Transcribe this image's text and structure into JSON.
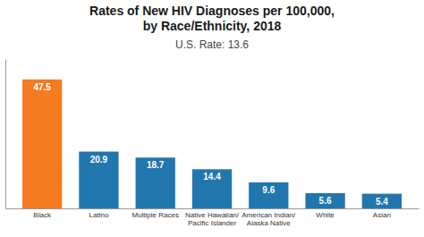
{
  "chart_data": {
    "type": "bar",
    "title": "Rates of New HIV Diagnoses per 100,000,\nby Race/Ethnicity, 2018",
    "subtitle": "U.S. Rate: 13.6",
    "categories": [
      "Black",
      "Latino",
      "Multiple Races",
      "Native Hawaiian/\nPacific Islander",
      "American Indian/\nAlaska Native",
      "White",
      "Asian"
    ],
    "values": [
      47.5,
      20.9,
      18.7,
      14.4,
      9.6,
      5.6,
      5.4
    ],
    "colors": [
      "#F47B20",
      "#2176AE",
      "#2176AE",
      "#2176AE",
      "#2176AE",
      "#2176AE",
      "#2176AE"
    ],
    "ylim": [
      0,
      55
    ],
    "data_labels": true,
    "tick_labels": "x",
    "grid": false
  }
}
